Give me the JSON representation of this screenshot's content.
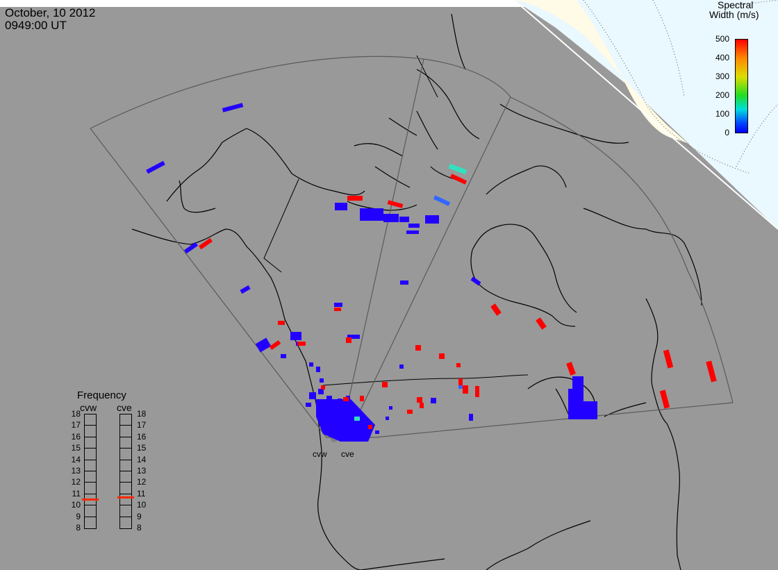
{
  "header": {
    "date": "October, 10 2012",
    "time": "0949:00 UT"
  },
  "radars": {
    "west": "cvw",
    "east": "cve"
  },
  "colorbar": {
    "title_line1": "Spectral",
    "title_line2": "Width (m/s)",
    "ticks": [
      "500",
      "400",
      "300",
      "200",
      "100",
      "0"
    ],
    "colors": [
      "#ff0000",
      "#ff8800",
      "#dddd00",
      "#22dd22",
      "#00dddd",
      "#0044ff",
      "#0000ff"
    ]
  },
  "frequency_panel": {
    "title": "Frequency",
    "left_label": "cvw",
    "right_label": "cve",
    "ticks": [
      "18",
      "17",
      "16",
      "15",
      "14",
      "13",
      "12",
      "11",
      "10",
      "9",
      "8"
    ],
    "cvw_value": 10.5,
    "cve_value": 10.7,
    "marker_color": "#ff2a00"
  },
  "map_colors": {
    "ocean_gray": "#999999",
    "ice": "#fffcea",
    "sunlit": "#eaf8ff",
    "coast": "#000000",
    "fov": "#505050",
    "scatter_red": "#ff0000",
    "scatter_blue": "#2200ff",
    "scatter_cyan": "#33e0c0",
    "scatter_lightblue": "#3366ff"
  }
}
